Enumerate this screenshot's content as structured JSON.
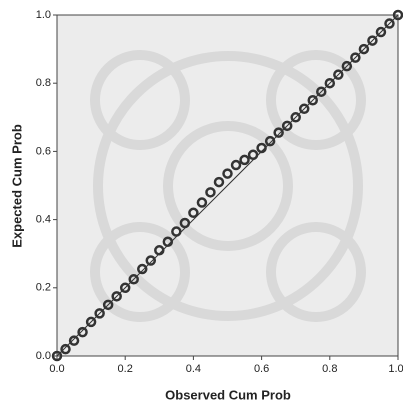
{
  "chart_data": {
    "type": "scatter",
    "x_label": "Observed Cum Prob",
    "y_label": "Expected Cum Prob",
    "x": [
      0,
      0.025,
      0.05,
      0.075,
      0.1,
      0.125,
      0.15,
      0.175,
      0.2,
      0.225,
      0.25,
      0.275,
      0.3,
      0.325,
      0.35,
      0.375,
      0.4,
      0.425,
      0.45,
      0.475,
      0.5,
      0.525,
      0.55,
      0.575,
      0.6,
      0.625,
      0.65,
      0.675,
      0.7,
      0.725,
      0.75,
      0.775,
      0.8,
      0.825,
      0.85,
      0.875,
      0.9,
      0.925,
      0.95,
      0.975,
      1.0
    ],
    "values": [
      0,
      0.02,
      0.045,
      0.07,
      0.1,
      0.125,
      0.15,
      0.175,
      0.2,
      0.225,
      0.255,
      0.28,
      0.31,
      0.335,
      0.365,
      0.39,
      0.42,
      0.45,
      0.48,
      0.51,
      0.535,
      0.56,
      0.575,
      0.59,
      0.61,
      0.63,
      0.655,
      0.675,
      0.7,
      0.725,
      0.75,
      0.775,
      0.8,
      0.825,
      0.85,
      0.875,
      0.9,
      0.925,
      0.95,
      0.975,
      1.0
    ],
    "color": "#333333",
    "xlim": [
      0,
      1
    ],
    "ylim": [
      0,
      1
    ],
    "xticks": [
      {
        "value": 0,
        "label": "0.0"
      },
      {
        "value": 0.2,
        "label": "0.2"
      },
      {
        "value": 0.4,
        "label": "0.4"
      },
      {
        "value": 0.6,
        "label": "0.6"
      },
      {
        "value": 0.8,
        "label": "0.8"
      },
      {
        "value": 1,
        "label": "1.0"
      }
    ],
    "yticks": [
      {
        "value": 0,
        "label": "0.0"
      },
      {
        "value": 0.2,
        "label": "0.2"
      },
      {
        "value": 0.4,
        "label": "0.4"
      },
      {
        "value": 0.6,
        "label": "0.6"
      },
      {
        "value": 0.8,
        "label": "0.8"
      },
      {
        "value": 1,
        "label": "1.0"
      }
    ]
  }
}
